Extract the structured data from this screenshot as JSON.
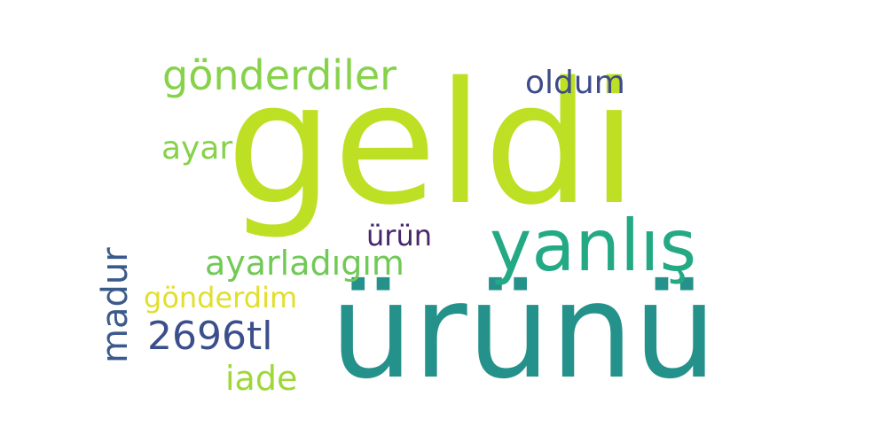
{
  "background": "#ffffff",
  "words": [
    {
      "text": "geldi",
      "color": "#bde025"
    },
    {
      "text": "ürünü",
      "color": "#24918b"
    },
    {
      "text": "yanlış",
      "color": "#24a985"
    },
    {
      "text": "gönderdiler",
      "color": "#86d24a"
    },
    {
      "text": "oldum",
      "color": "#3d4b8a"
    },
    {
      "text": "ayar",
      "color": "#86d24a"
    },
    {
      "text": "ürün",
      "color": "#47276b"
    },
    {
      "text": "ayarladıgım",
      "color": "#71c957"
    },
    {
      "text": "gönderdim",
      "color": "#e1df2c"
    },
    {
      "text": "2696tl",
      "color": "#3b4f8c"
    },
    {
      "text": "iade",
      "color": "#9fd737"
    },
    {
      "text": "madur",
      "color": "#3b5a8c"
    }
  ]
}
